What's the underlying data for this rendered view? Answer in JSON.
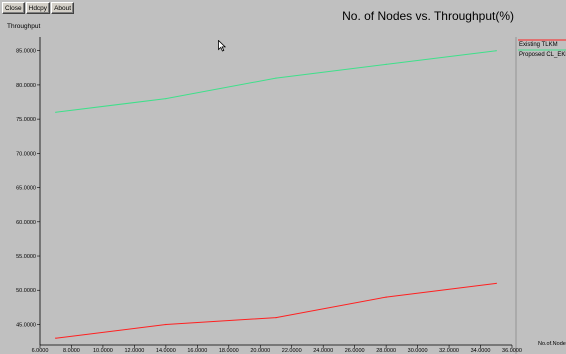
{
  "toolbar": {
    "close_label": "Close",
    "hdcpy_label": "Hdcpy",
    "about_label": "About"
  },
  "cursor_icon": "arrow-cursor-icon",
  "colors": {
    "background": "#c0c0c0",
    "existing": "#ff2020",
    "proposed": "#3ee08a"
  },
  "chart_data": {
    "type": "line",
    "title": "No. of Nodes vs. Throughput(%)",
    "ylabel": "Throughput",
    "xlabel": "No.of.Nodes",
    "xlim": [
      6,
      36
    ],
    "ylim": [
      42,
      87
    ],
    "grid": false,
    "legend_position": "right",
    "x_ticks": [
      "6.0000",
      "8.0000",
      "10.0000",
      "12.0000",
      "14.0000",
      "16.0000",
      "18.0000",
      "20.0000",
      "22.0000",
      "24.0000",
      "26.0000",
      "28.0000",
      "30.0000",
      "32.0000",
      "34.0000",
      "36.0000"
    ],
    "y_ticks": [
      "45.0000",
      "50.0000",
      "55.0000",
      "60.0000",
      "65.0000",
      "70.0000",
      "75.0000",
      "80.0000",
      "85.0000"
    ],
    "series": [
      {
        "name": "Existing TLKM",
        "color": "#ff2020",
        "x": [
          7,
          14,
          21,
          28,
          35
        ],
        "values": [
          43,
          45,
          46,
          49,
          51
        ]
      },
      {
        "name": "Proposed CL_EKM",
        "color": "#3ee08a",
        "x": [
          7,
          14,
          21,
          28,
          35
        ],
        "values": [
          76,
          78,
          81,
          83,
          85
        ]
      }
    ]
  }
}
